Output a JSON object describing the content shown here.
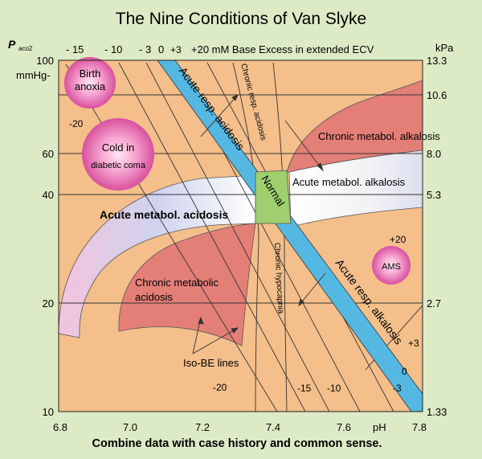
{
  "title": "The Nine Conditions of Van Slyke",
  "footer": "Combine data with case history and common sense.",
  "axis": {
    "left_label_main": "P",
    "left_label_sub": "aco2",
    "left_unit": "mmHg-",
    "right_unit": "kPa",
    "x_unit": "pH",
    "top_caption": "+20 mM Base Excess in extended ECV",
    "x_ticks": [
      "6.8",
      "7.0",
      "7.2",
      "7.4",
      "7.6",
      "7.8"
    ],
    "y_ticks_mmhg": [
      "100",
      "60",
      "40",
      "20",
      "10"
    ],
    "y_ticks_kpa": [
      "13.3",
      "10.6",
      "8.0",
      "5.3",
      "2.7",
      "1.33"
    ],
    "top_be_ticks": [
      "- 15",
      "- 10",
      "- 3",
      "0",
      "+3"
    ]
  },
  "regions": {
    "acute_resp_acidosis": "Acute resp. acidosis",
    "chronic_resp_acidosis": "Chronic resp. acidosis",
    "chronic_metabol_alkalosis": "Chronic metabol. alkalosis",
    "acute_metabol_alkalosis": "Acute metabol. alkalosis",
    "normal": "Normal",
    "acute_metabol_acidosis": "Acute metabol. acidosis",
    "chronic_metabolic_acidosis_1": "Chronic metabolic",
    "chronic_metabolic_acidosis_2": "acidosis",
    "chronic_hypocapnia": "Chronic hypocapnia",
    "acute_resp_alkalosis": "Acute resp. alkalosis"
  },
  "circles": {
    "birth_anoxia_1": "Birth",
    "birth_anoxia_2": "anoxia",
    "cold_1": "Cold in",
    "cold_2": "diabetic coma",
    "ams": "AMS"
  },
  "be_labels": {
    "minus20_top": "-20",
    "minus20_bottom": "-20",
    "minus15": "-15",
    "minus10": "-10",
    "minus3": "-3",
    "plus20": "+20",
    "plus3": "+3",
    "zero": "0",
    "iso_be": "Iso-BE lines"
  },
  "colors": {
    "background": "#dcebc6",
    "plot": "#f4bf8b",
    "blue_band": "#55b8e3",
    "normal": "#9fcf6e",
    "red_zone": "#e47f78",
    "circle": "#d85aa5"
  }
}
